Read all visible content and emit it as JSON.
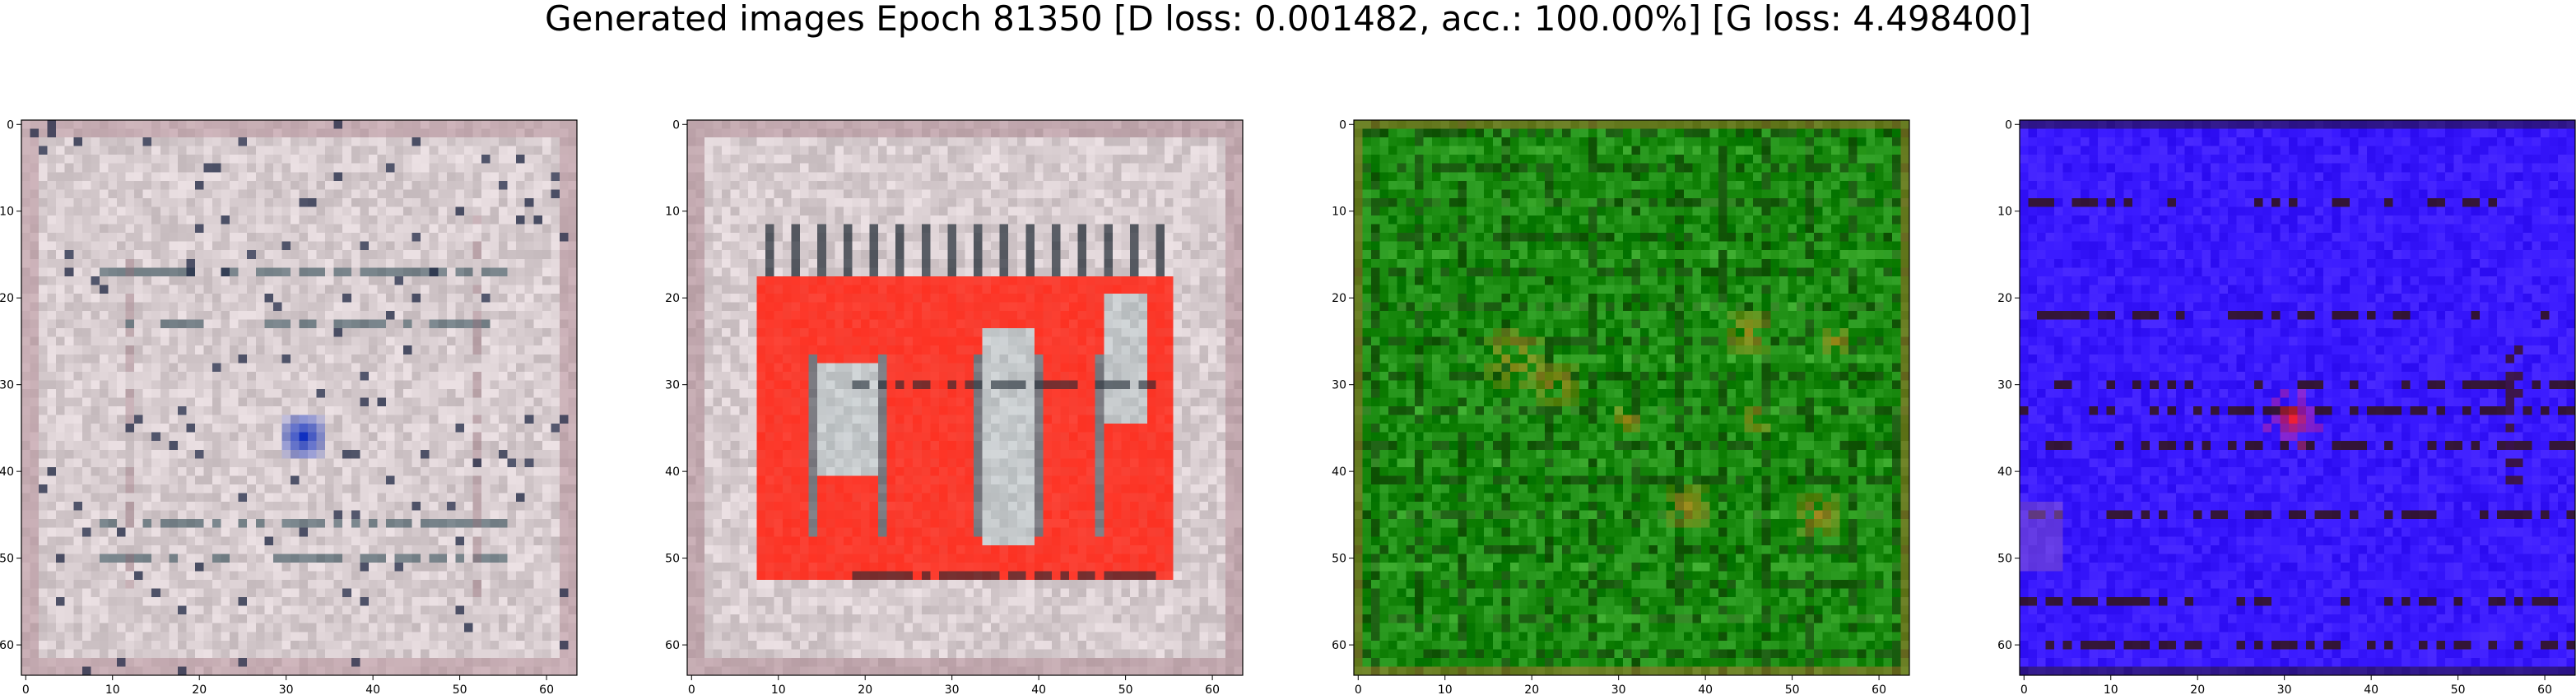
{
  "figure": {
    "title": "Generated images Epoch 81350 [D loss: 0.001482, acc.: 100.00%] [G loss: 4.498400]"
  },
  "chart_data": [
    {
      "type": "heatmap",
      "name": "generated-image-1",
      "content": "pale pinkish-grey noisy grid with dark horizontal streaks and a blue blob near the centre",
      "xlim": [
        0,
        63
      ],
      "ylim": [
        63,
        0
      ],
      "xticks": [
        0,
        10,
        20,
        30,
        40,
        50,
        60
      ],
      "yticks": [
        0,
        10,
        20,
        30,
        40,
        50,
        60
      ],
      "dominant_color": "#d8cdd0",
      "accent_color": "#1030c0"
    },
    {
      "type": "heatmap",
      "name": "generated-image-2",
      "content": "pale pinkish-grey grid with a large red block pattern and dark vertical bars in the middle",
      "xlim": [
        0,
        63
      ],
      "ylim": [
        63,
        0
      ],
      "xticks": [
        0,
        10,
        20,
        30,
        40,
        50,
        60
      ],
      "yticks": [
        0,
        10,
        20,
        30,
        40,
        50,
        60
      ],
      "dominant_color": "#d8cdd0",
      "accent_color": "#ff2a1a"
    },
    {
      "type": "heatmap",
      "name": "generated-image-3",
      "content": "green field with dark grid lines and orange patches",
      "xlim": [
        0,
        63
      ],
      "ylim": [
        63,
        0
      ],
      "xticks": [
        0,
        10,
        20,
        30,
        40,
        50,
        60
      ],
      "yticks": [
        0,
        10,
        20,
        30,
        40,
        50,
        60
      ],
      "dominant_color": "#1a8a10",
      "accent_color": "#d08a20"
    },
    {
      "type": "heatmap",
      "name": "generated-image-4",
      "content": "saturated blue field with dark horizontal dashes and a small red spot near the centre",
      "xlim": [
        0,
        63
      ],
      "ylim": [
        63,
        0
      ],
      "xticks": [
        0,
        10,
        20,
        30,
        40,
        50,
        60
      ],
      "yticks": [
        0,
        10,
        20,
        30,
        40,
        50,
        60
      ],
      "dominant_color": "#3a1aff",
      "accent_color": "#ff2020"
    }
  ]
}
